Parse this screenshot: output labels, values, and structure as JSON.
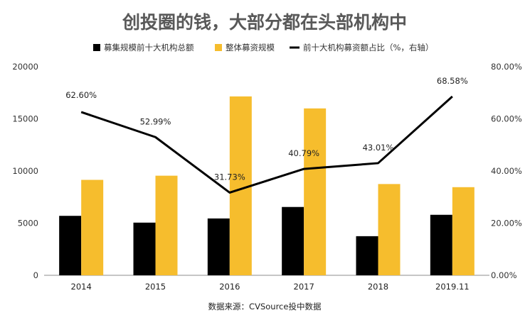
{
  "chart_data": {
    "type": "bar+line",
    "title": "创投圈的钱，大部分都在头部机构中",
    "categories": [
      "2014",
      "2015",
      "2016",
      "2017",
      "2018",
      "2019.11"
    ],
    "series": [
      {
        "name": "募集规模前十大机构总额",
        "type": "bar",
        "axis": "left",
        "color": "#000000",
        "values": [
          5700,
          5050,
          5450,
          6550,
          3750,
          5800
        ]
      },
      {
        "name": "整体募资规模",
        "type": "bar",
        "axis": "left",
        "color": "#F6BD2D",
        "values": [
          9150,
          9550,
          17150,
          16000,
          8750,
          8450
        ]
      },
      {
        "name": "前十大机构募资额占比（%，右轴）",
        "type": "line",
        "axis": "right",
        "color": "#000000",
        "values": [
          62.6,
          52.99,
          31.73,
          40.79,
          43.01,
          68.58
        ],
        "labels": [
          "62.60%",
          "52.99%",
          "31.73%",
          "40.79%",
          "43.01%",
          "68.58%"
        ]
      }
    ],
    "y_left": {
      "min": 0,
      "max": 20000,
      "ticks": [
        "0",
        "5000",
        "10000",
        "15000",
        "20000"
      ]
    },
    "y_right": {
      "min": 0,
      "max": 80,
      "ticks": [
        "0.00%",
        "20.00%",
        "40.00%",
        "60.00%",
        "80.00%"
      ]
    },
    "grid": false,
    "legend_position": "top"
  },
  "source": "数据来源：CVSource投中数据"
}
